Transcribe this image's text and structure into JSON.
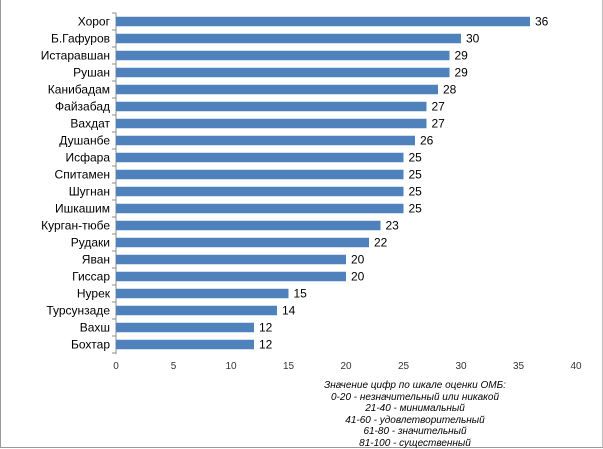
{
  "chart_data": {
    "type": "bar",
    "orientation": "horizontal",
    "categories": [
      "Хорог",
      "Б.Гафуров",
      "Истаравшан",
      "Рушан",
      "Канибадам",
      "Файзабад",
      "Вахдат",
      "Душанбе",
      "Исфара",
      "Спитамен",
      "Шугнан",
      "Ишкашим",
      "Курган-тюбе",
      "Рудаки",
      "Яван",
      "Гиссар",
      "Нурек",
      "Турсунзаде",
      "Вахш",
      "Бохтар"
    ],
    "values": [
      36,
      30,
      29,
      29,
      28,
      27,
      27,
      26,
      25,
      25,
      25,
      25,
      23,
      22,
      20,
      20,
      15,
      14,
      12,
      12
    ],
    "xlim": [
      0,
      40
    ],
    "xticks": [
      "0",
      "5",
      "10",
      "15",
      "20",
      "25",
      "30",
      "35",
      "40"
    ],
    "bar_color": "#4f81bd",
    "grid": false,
    "legend": "none",
    "annotation": [
      "Значение цифр по шкале оценки ОМБ:",
      "0-20 - незначительный или никакой",
      "21-40 - минимальный",
      "41-60 - удовлетворительный",
      "61-80 - значительный",
      "81-100 - существенный"
    ]
  }
}
